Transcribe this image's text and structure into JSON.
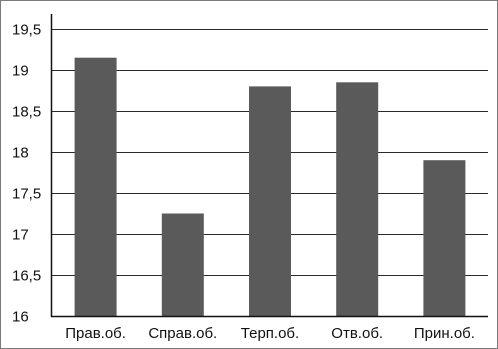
{
  "chart_data": {
    "type": "bar",
    "categories": [
      "Прав.об.",
      "Справ.об.",
      "Терп.об.",
      "Отв.об.",
      "Прин.об."
    ],
    "values": [
      19.15,
      17.25,
      18.8,
      18.85,
      17.9
    ],
    "ylim": [
      16,
      19.5
    ],
    "yticks": [
      16,
      16.5,
      17,
      17.5,
      18,
      18.5,
      19,
      19.5
    ],
    "ytick_labels": [
      "16",
      "16,5",
      "17",
      "17,5",
      "18",
      "18,5",
      "19",
      "19,5"
    ],
    "title": "",
    "xlabel": "",
    "ylabel": "",
    "grid": true,
    "bar_color": "#5a5a5a",
    "grid_color": "#2b2b2b"
  }
}
